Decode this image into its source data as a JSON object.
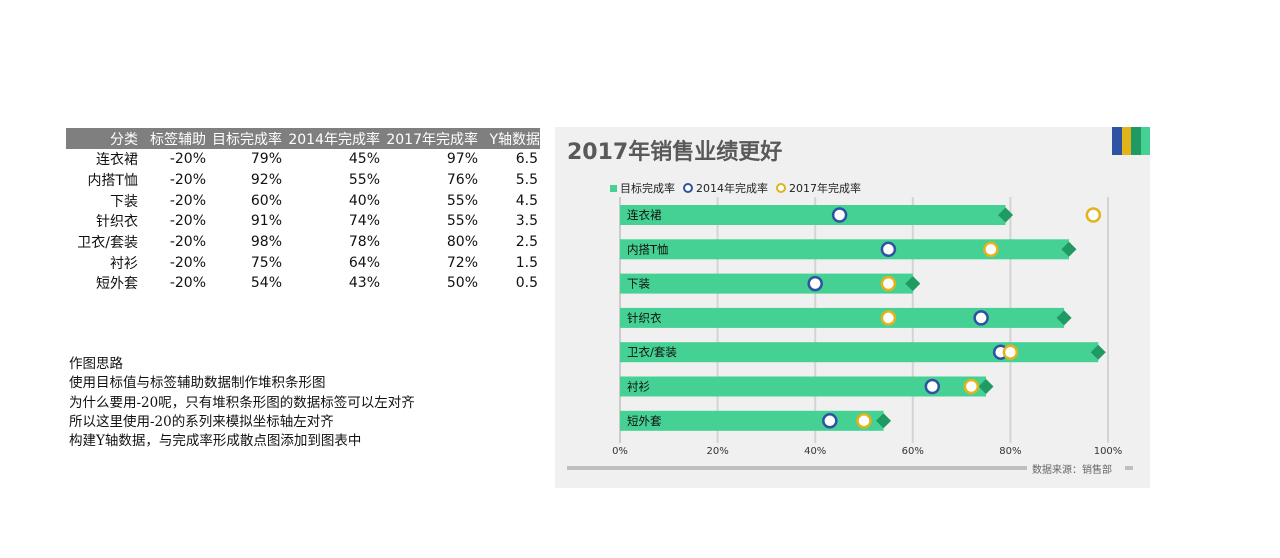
{
  "table": {
    "headers": [
      "分类",
      "标签辅助",
      "目标完成率",
      "2014年完成率",
      "2017年完成率",
      "Y轴数据"
    ],
    "rows": [
      [
        "连衣裙",
        "-20%",
        "79%",
        "45%",
        "97%",
        "6.5"
      ],
      [
        "内搭T恤",
        "-20%",
        "92%",
        "55%",
        "76%",
        "5.5"
      ],
      [
        "下装",
        "-20%",
        "60%",
        "40%",
        "55%",
        "4.5"
      ],
      [
        "针织衣",
        "-20%",
        "91%",
        "74%",
        "55%",
        "3.5"
      ],
      [
        "卫衣/套装",
        "-20%",
        "98%",
        "78%",
        "80%",
        "2.5"
      ],
      [
        "衬衫",
        "-20%",
        "75%",
        "64%",
        "72%",
        "1.5"
      ],
      [
        "短外套",
        "-20%",
        "54%",
        "43%",
        "50%",
        "0.5"
      ]
    ]
  },
  "notes": [
    "作图思路",
    "使用目标值与标签辅助数据制作堆积条形图",
    "为什么要用-20呢，只有堆积条形图的数据标签可以左对齐",
    "所以这里使用-20的系列来模拟坐标轴左对齐",
    "构建Y轴数据，与完成率形成散点图添加到图表中"
  ],
  "colors": {
    "bar": "#45d094",
    "diamond": "#1e9a62",
    "ring2014": "#2f53a3",
    "ring2017": "#e2b31a",
    "header_bg": "#7f7f7f",
    "panel_bg": "#f0f0f0",
    "deco": [
      "#2f53a3",
      "#e2b31a",
      "#1e9a62",
      "#45d094"
    ]
  },
  "chart_data": {
    "type": "bar",
    "title": "2017年销售业绩更好",
    "categories": [
      "连衣裙",
      "内搭T恤",
      "下装",
      "针织衣",
      "卫衣/套装",
      "衬衫",
      "短外套"
    ],
    "series": [
      {
        "name": "目标完成率",
        "values": [
          79,
          92,
          60,
          91,
          98,
          75,
          54
        ]
      },
      {
        "name": "2014年完成率",
        "values": [
          45,
          55,
          40,
          74,
          78,
          64,
          43
        ]
      },
      {
        "name": "2017年完成率",
        "values": [
          97,
          76,
          55,
          55,
          80,
          72,
          50
        ]
      }
    ],
    "xlim": [
      0,
      100
    ],
    "xticks": [
      "0%",
      "20%",
      "40%",
      "60%",
      "80%",
      "100%"
    ],
    "xlabel": "",
    "ylabel": "",
    "legend_position": "top-left",
    "grid": true,
    "source": "数据来源：销售部"
  }
}
